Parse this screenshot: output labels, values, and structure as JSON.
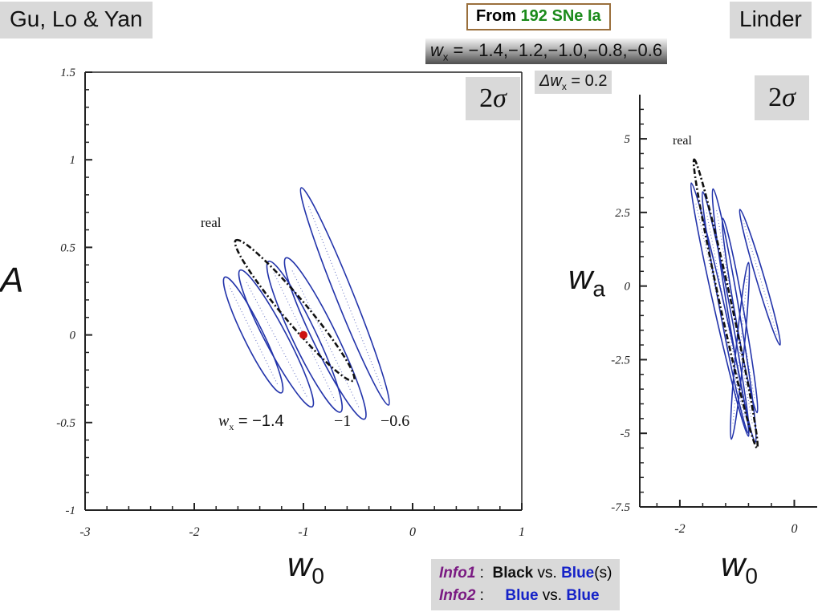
{
  "left_title": "Gu, Lo & Yan",
  "right_title": "Linder",
  "from_box": {
    "prefix": "From ",
    "highlight": "192 SNe Ia",
    "highlight_color": "#1a8a1a"
  },
  "wx_values": {
    "symbol": "w",
    "sub": "x",
    "rest": " = −1.4,−1.2,−1.0,−0.8,−0.6"
  },
  "dwx": {
    "text": "Δw",
    "sub": "x",
    "rest": " = 0.2"
  },
  "sigma_left": {
    "num": "2",
    "sym": "σ"
  },
  "sigma_right": {
    "num": "2",
    "sym": "σ"
  },
  "left_ylabel": "A",
  "right_ylabel": {
    "main": "w",
    "sub": "a"
  },
  "left_xlabel": {
    "main": "w",
    "sub": "0"
  },
  "right_xlabel": {
    "main": "w",
    "sub": "0"
  },
  "left_annotations": {
    "real": "real",
    "wx_prefix": "w",
    "wx_sub": "x",
    "wx_value": " = −1.4",
    "mid": "−1",
    "right": "−0.6"
  },
  "right_annotations": {
    "real": "real"
  },
  "info": {
    "info1_label": "Info1",
    "info1_sep": " :  ",
    "info1_black": "Black",
    "info1_vs": " vs. ",
    "info1_blue": "Blue",
    "info1_tail": "(s)",
    "info2_label": "Info2",
    "info2_sep": " :     ",
    "info2_blue1": "Blue",
    "info2_vs": " vs. ",
    "info2_blue2": "Blue"
  },
  "colors": {
    "contour": "#2233aa",
    "real": "#111111",
    "fiducial": "#cc1111"
  },
  "chart_data": [
    {
      "type": "line",
      "title": "",
      "xlabel": "w0",
      "ylabel": "A",
      "xlim": [
        -3,
        1
      ],
      "ylim": [
        -1,
        1.5
      ],
      "xticks": [
        -3,
        -2,
        -1,
        0,
        1
      ],
      "yticks": [
        -1,
        -0.5,
        0,
        0.5,
        1,
        1.5
      ],
      "xtick_labels": [
        "-3",
        "-2",
        "-1",
        "0",
        "1"
      ],
      "ytick_labels": [
        "-1",
        "-0.5",
        "0",
        "0.5",
        "1",
        "1.5"
      ],
      "grid": false,
      "fiducial_point": {
        "x": -1.0,
        "y": 0.0
      },
      "series": [
        {
          "wx": -1.4,
          "style": "solid",
          "center": [
            -1.46,
            0.0
          ],
          "axis_end": [
            -1.72,
            0.33
          ],
          "half_width": 0.09
        },
        {
          "wx": -1.2,
          "style": "solid",
          "center": [
            -1.25,
            -0.02
          ],
          "axis_end": [
            -1.58,
            0.37
          ],
          "half_width": 0.1
        },
        {
          "wx": -1.0,
          "style": "solid",
          "center": [
            -0.99,
            -0.01
          ],
          "axis_end": [
            -1.32,
            0.42
          ],
          "half_width": 0.11
        },
        {
          "wx": -0.8,
          "style": "solid",
          "center": [
            -0.8,
            -0.02
          ],
          "axis_end": [
            -1.16,
            0.44
          ],
          "half_width": 0.11
        },
        {
          "wx": -0.6,
          "style": "solid",
          "center": [
            -0.62,
            0.22
          ],
          "axis_end": [
            -1.02,
            0.84
          ],
          "half_width": 0.08
        },
        {
          "name": "real",
          "style": "dashdot",
          "center": [
            -1.08,
            0.14
          ],
          "axis_end": [
            -1.62,
            0.54
          ],
          "half_width": 0.11
        }
      ]
    },
    {
      "type": "line",
      "title": "",
      "xlabel": "w0",
      "ylabel": "wa",
      "xlim": [
        -2.7,
        0.4
      ],
      "ylim": [
        -7.5,
        6.5
      ],
      "xticks": [
        -2,
        0
      ],
      "yticks": [
        -7.5,
        -5,
        -2.5,
        0,
        2.5,
        5
      ],
      "xtick_labels": [
        "-2",
        "0"
      ],
      "ytick_labels": [
        "-7.5",
        "-5",
        "-2.5",
        "0",
        "2.5",
        "5"
      ],
      "grid": false,
      "series": [
        {
          "style": "solid",
          "center": [
            -1.3,
            -0.8
          ],
          "axis_end": [
            -1.8,
            3.5
          ],
          "half_width": 0.09
        },
        {
          "style": "solid",
          "center": [
            -1.2,
            -0.9
          ],
          "axis_end": [
            -1.6,
            3.2
          ],
          "half_width": 0.09
        },
        {
          "style": "solid",
          "center": [
            -1.05,
            -1.0
          ],
          "axis_end": [
            -1.42,
            3.3
          ],
          "half_width": 0.1
        },
        {
          "style": "solid",
          "center": [
            -0.95,
            -1.0
          ],
          "axis_end": [
            -1.25,
            2.3
          ],
          "half_width": 0.08
        },
        {
          "style": "solid",
          "center": [
            -0.6,
            0.3
          ],
          "axis_end": [
            -0.95,
            2.6
          ],
          "half_width": 0.07
        },
        {
          "style": "solid",
          "center": [
            -0.95,
            -2.2
          ],
          "axis_end": [
            -1.1,
            -5.2
          ],
          "half_width": 0.07
        },
        {
          "name": "real",
          "style": "dashdot",
          "center": [
            -1.2,
            -0.6
          ],
          "axis_end": [
            -1.75,
            4.3
          ],
          "half_width": 0.1
        }
      ]
    }
  ]
}
